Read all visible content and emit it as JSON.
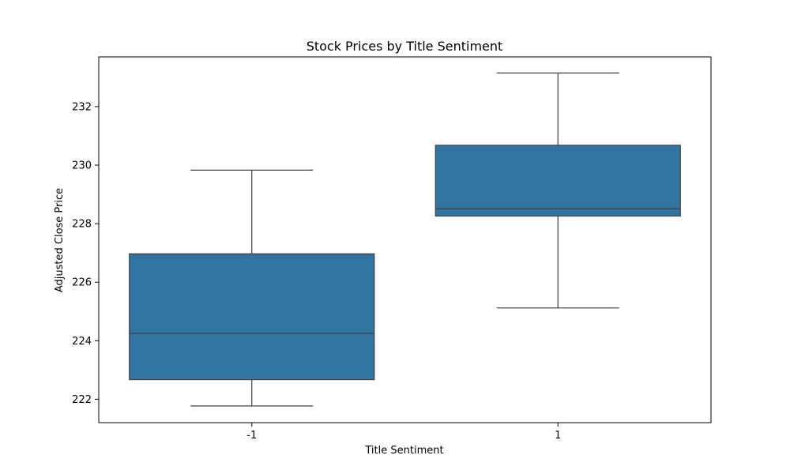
{
  "chart_data": {
    "type": "box",
    "title": "Stock Prices by Title Sentiment",
    "xlabel": "Title Sentiment",
    "ylabel": "Adjusted Close Price",
    "categories": [
      "-1",
      "1"
    ],
    "ylim": [
      221.2,
      233.7
    ],
    "yticks": [
      222,
      224,
      226,
      228,
      230,
      232
    ],
    "grid": false,
    "box_color": "#3274a1",
    "line_color": "#3f3f3f",
    "boxes": [
      {
        "category": "-1",
        "whisker_low": 221.77,
        "q1": 222.67,
        "median": 224.25,
        "q3": 226.97,
        "whisker_high": 229.83
      },
      {
        "category": "1",
        "whisker_low": 225.12,
        "q1": 228.26,
        "median": 228.51,
        "q3": 230.68,
        "whisker_high": 233.15
      }
    ]
  }
}
